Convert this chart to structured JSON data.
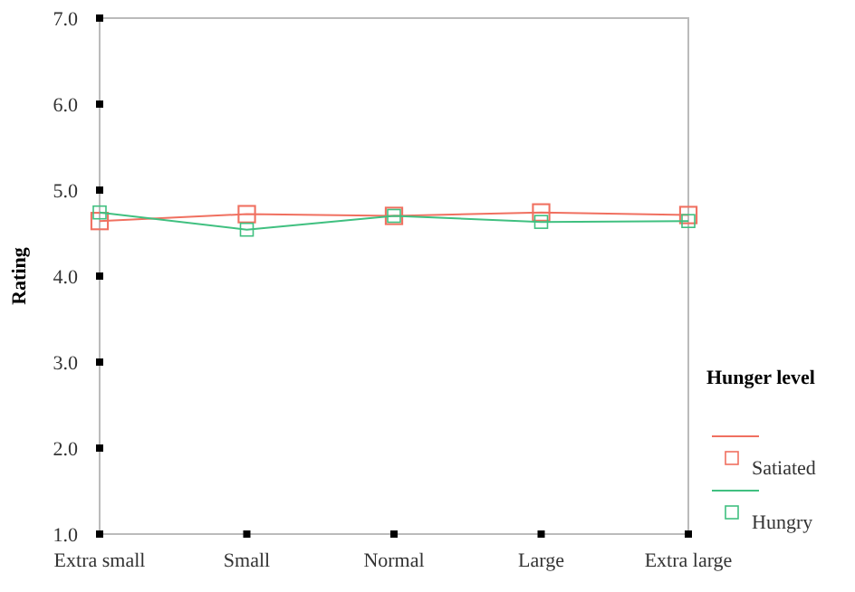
{
  "chart_data": {
    "type": "line",
    "ylabel": "Rating",
    "legend_title": "Hunger level",
    "legend": "right",
    "marker": "square",
    "categories": [
      "Extra small",
      "Small",
      "Normal",
      "Large",
      "Extra large"
    ],
    "ylim": [
      1,
      7
    ],
    "yticks": [
      {
        "value": 1,
        "label": "1.0"
      },
      {
        "value": 2,
        "label": "2.0"
      },
      {
        "value": 3,
        "label": "3.0"
      },
      {
        "value": 4,
        "label": "4.0"
      },
      {
        "value": 5,
        "label": "5.0"
      },
      {
        "value": 6,
        "label": "6.0"
      },
      {
        "value": 7,
        "label": "7.0"
      }
    ],
    "series": [
      {
        "name": "Satiated",
        "color": "#f07060",
        "values": [
          4.64,
          4.72,
          4.7,
          4.74,
          4.71
        ]
      },
      {
        "name": "Hungry",
        "color": "#40c080",
        "values": [
          4.74,
          4.54,
          4.7,
          4.63,
          4.64
        ]
      }
    ]
  }
}
